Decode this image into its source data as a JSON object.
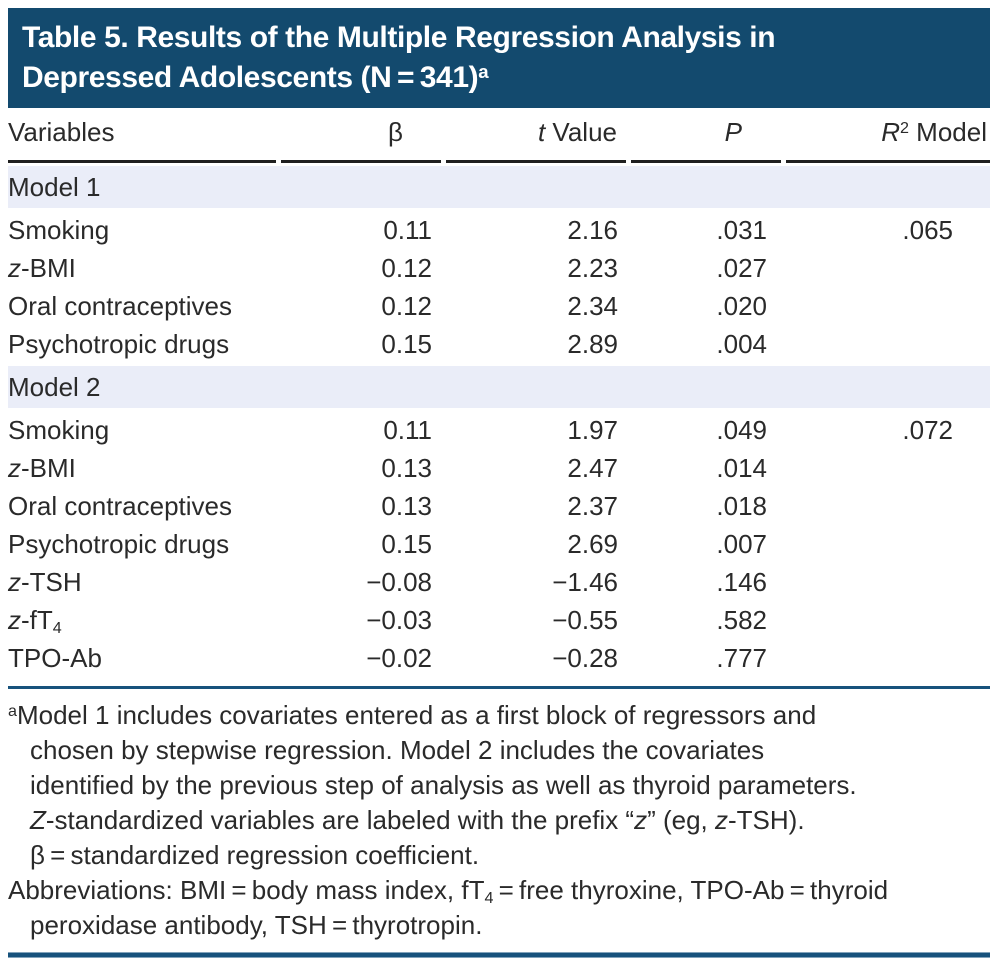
{
  "title": {
    "lines": [
      [
        {
          "t": "Table 5. Results of the Multiple Regression Analysis in"
        }
      ],
      [
        {
          "t": "Depressed Adolescents (N = 341)"
        },
        {
          "t": "a",
          "s": "sup"
        }
      ]
    ]
  },
  "colors": {
    "banner_bg": "#134a6e",
    "section_band_bg": "#eaedf8",
    "rule_blue": "#17527c",
    "header_rule_black": "#1f1f1f",
    "text": "#2a2a2a",
    "title_text": "#ffffff"
  },
  "table": {
    "headers": [
      [
        {
          "t": "Variables"
        }
      ],
      [
        {
          "t": "β"
        }
      ],
      [
        {
          "t": "t",
          "s": "i"
        },
        {
          "t": " Value"
        }
      ],
      [
        {
          "t": "P",
          "s": "i"
        }
      ],
      [
        {
          "t": "R",
          "s": "i"
        },
        {
          "t": "2",
          "s": "sup"
        },
        {
          "t": " Model"
        }
      ]
    ],
    "sections": [
      {
        "label": "Model 1",
        "rows": [
          {
            "label": [
              {
                "t": "Smoking"
              }
            ],
            "beta": "0.11",
            "t": "2.16",
            "p": ".031",
            "r2": ".065"
          },
          {
            "label": [
              {
                "t": "z",
                "s": "i"
              },
              {
                "t": "-BMI"
              }
            ],
            "beta": "0.12",
            "t": "2.23",
            "p": ".027",
            "r2": ""
          },
          {
            "label": [
              {
                "t": "Oral contraceptives"
              }
            ],
            "beta": "0.12",
            "t": "2.34",
            "p": ".020",
            "r2": ""
          },
          {
            "label": [
              {
                "t": "Psychotropic drugs"
              }
            ],
            "beta": "0.15",
            "t": "2.89",
            "p": ".004",
            "r2": ""
          }
        ]
      },
      {
        "label": "Model 2",
        "rows": [
          {
            "label": [
              {
                "t": "Smoking"
              }
            ],
            "beta": "0.11",
            "t": "1.97",
            "p": ".049",
            "r2": ".072"
          },
          {
            "label": [
              {
                "t": "z",
                "s": "i"
              },
              {
                "t": "-BMI"
              }
            ],
            "beta": "0.13",
            "t": "2.47",
            "p": ".014",
            "r2": ""
          },
          {
            "label": [
              {
                "t": "Oral contraceptives"
              }
            ],
            "beta": "0.13",
            "t": "2.37",
            "p": ".018",
            "r2": ""
          },
          {
            "label": [
              {
                "t": "Psychotropic drugs"
              }
            ],
            "beta": "0.15",
            "t": "2.69",
            "p": ".007",
            "r2": ""
          },
          {
            "label": [
              {
                "t": "z",
                "s": "i"
              },
              {
                "t": "-TSH"
              }
            ],
            "beta": "−0.08",
            "t": "−1.46",
            "p": ".146",
            "r2": ""
          },
          {
            "label": [
              {
                "t": "z",
                "s": "i"
              },
              {
                "t": "-fT"
              },
              {
                "t": "4",
                "s": "sub"
              }
            ],
            "beta": "−0.03",
            "t": "−0.55",
            "p": ".582",
            "r2": ""
          },
          {
            "label": [
              {
                "t": "TPO-Ab"
              }
            ],
            "beta": "−0.02",
            "t": "−0.28",
            "p": ".777",
            "r2": ""
          }
        ]
      }
    ]
  },
  "footnotes": {
    "lines": [
      {
        "segments": [
          {
            "t": "a",
            "s": "sup"
          },
          {
            "t": "Model 1 includes covariates entered as a first block of regressors and"
          }
        ]
      },
      {
        "segments": [
          {
            "t": "chosen by stepwise regression. Model 2 includes the covariates"
          }
        ]
      },
      {
        "segments": [
          {
            "t": "identified by the previous step of analysis as well as thyroid parameters."
          }
        ]
      },
      {
        "segments": [
          {
            "t": "Z",
            "s": "i"
          },
          {
            "t": "-standardized variables are labeled with the prefix “"
          },
          {
            "t": "z",
            "s": "i"
          },
          {
            "t": "” (eg, "
          },
          {
            "t": "z",
            "s": "i"
          },
          {
            "t": "-TSH)."
          }
        ]
      },
      {
        "segments": [
          {
            "t": "β = standardized regression coefficient."
          }
        ]
      },
      {
        "segments": [
          {
            "t": "Abbreviations: BMI = body mass index, fT"
          },
          {
            "t": "4",
            "s": "sub"
          },
          {
            "t": " = free thyroxine, TPO-Ab = thyroid"
          }
        ]
      },
      {
        "segments": [
          {
            "t": "peroxidase antibody, TSH = thyrotropin."
          }
        ]
      }
    ]
  }
}
